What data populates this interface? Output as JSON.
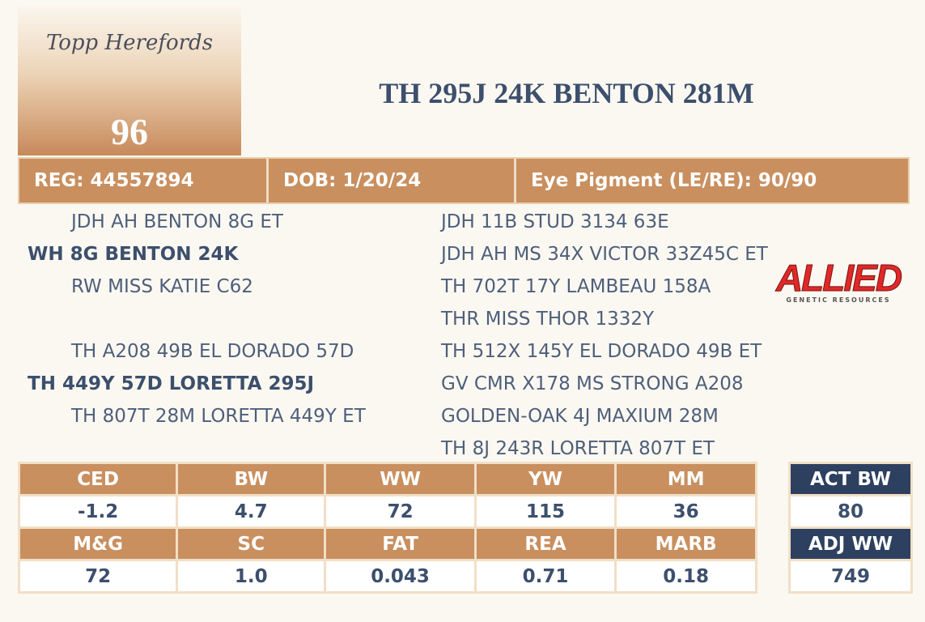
{
  "logo": {
    "brand": "Topp Herefords",
    "lot": "96"
  },
  "title": "TH 295J 24K BENTON 281M",
  "info": [
    "REG: 44557894",
    "DOB: 1/20/24",
    "Eye Pigment (LE/RE): 90/90"
  ],
  "pedigree": {
    "sire_side": [
      "JDH AH BENTON 8G ET",
      "WH 8G BENTON 24K",
      "RW MISS KATIE C62"
    ],
    "dam_side": [
      "TH A208 49B EL DORADO 57D",
      "TH 449Y 57D LORETTA 295J",
      "TH 807T 28M LORETTA 449Y ET"
    ],
    "right": [
      "JDH 11B STUD 3134 63E",
      "JDH AH MS 34X VICTOR 33Z45C ET",
      "TH 702T 17Y LAMBEAU 158A",
      "THR MISS THOR 1332Y",
      "TH 512X 145Y EL DORADO 49B ET",
      "GV CMR X178 MS STRONG A208",
      "GOLDEN-OAK 4J MAXIUM 28M",
      "TH 8J 243R LORETTA 807T ET"
    ]
  },
  "sponsor": {
    "name": "ALLIED",
    "tagline": "GENETIC RESOURCES"
  },
  "epd": {
    "headers": [
      [
        "CED",
        "BW",
        "WW",
        "YW",
        "MM"
      ],
      [
        "M&G",
        "SC",
        "FAT",
        "REA",
        "MARB"
      ]
    ],
    "values": [
      [
        "-1.2",
        "4.7",
        "72",
        "115",
        "36"
      ],
      [
        "72",
        "1.0",
        "0.043",
        "0.71",
        "0.18"
      ]
    ]
  },
  "actuals": [
    {
      "label": "ACT BW",
      "value": "80"
    },
    {
      "label": "ADJ WW",
      "value": "749"
    }
  ]
}
